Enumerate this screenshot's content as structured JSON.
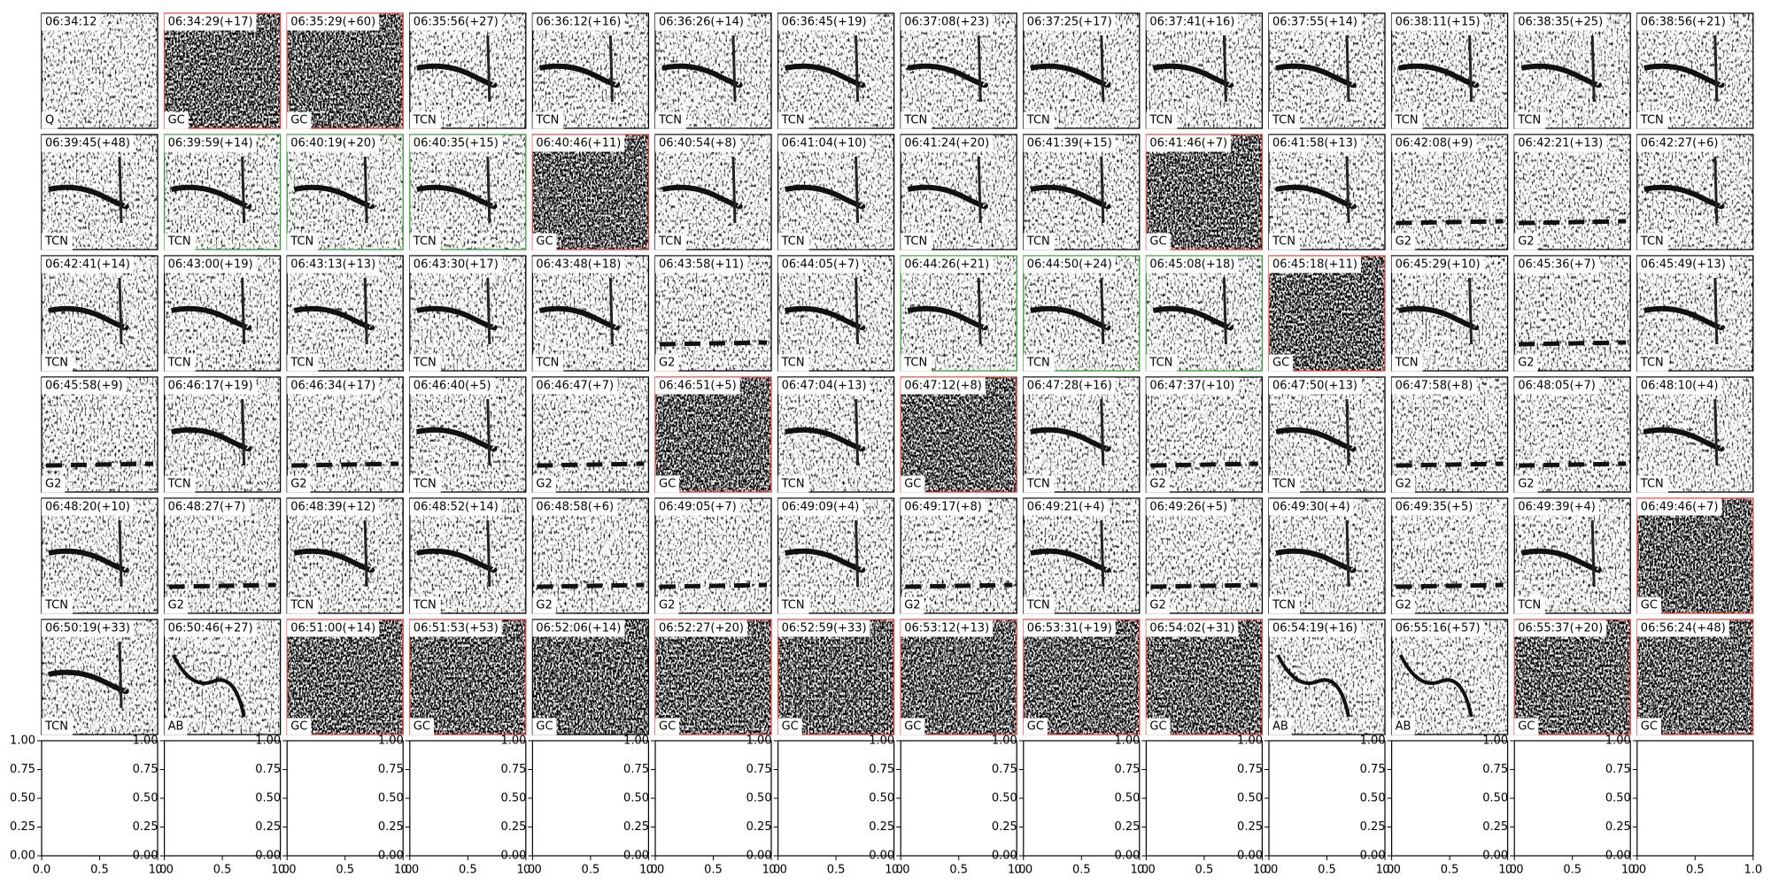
{
  "rows": [
    [
      {
        "time": "06:34:12",
        "label": "Q"
      },
      {
        "time": "06:34:29(+17)",
        "label": "GC",
        "border": "#e5403a"
      },
      {
        "time": "06:35:29(+60)",
        "label": "GC",
        "border": "#e5403a"
      },
      {
        "time": "06:35:56(+27)",
        "label": "TCN"
      },
      {
        "time": "06:36:12(+16)",
        "label": "TCN"
      },
      {
        "time": "06:36:26(+14)",
        "label": "TCN"
      },
      {
        "time": "06:36:45(+19)",
        "label": "TCN"
      },
      {
        "time": "06:37:08(+23)",
        "label": "TCN"
      },
      {
        "time": "06:37:25(+17)",
        "label": "TCN"
      },
      {
        "time": "06:37:41(+16)",
        "label": "TCN"
      },
      {
        "time": "06:37:55(+14)",
        "label": "TCN"
      },
      {
        "time": "06:38:11(+15)",
        "label": "TCN"
      },
      {
        "time": "06:38:35(+25)",
        "label": "TCN"
      },
      {
        "time": "06:38:56(+21)",
        "label": "TCN"
      }
    ],
    [
      {
        "time": "06:39:45(+48)",
        "label": "TCN"
      },
      {
        "time": "06:39:59(+14)",
        "label": "TCN",
        "border": "#3a9a3a"
      },
      {
        "time": "06:40:19(+20)",
        "label": "TCN",
        "border": "#3a9a3a"
      },
      {
        "time": "06:40:35(+15)",
        "label": "TCN",
        "border": "#3a9a3a"
      },
      {
        "time": "06:40:46(+11)",
        "label": "GC",
        "border": "#e5403a"
      },
      {
        "time": "06:40:54(+8)",
        "label": "TCN"
      },
      {
        "time": "06:41:04(+10)",
        "label": "TCN"
      },
      {
        "time": "06:41:24(+20)",
        "label": "TCN"
      },
      {
        "time": "06:41:39(+15)",
        "label": "TCN"
      },
      {
        "time": "06:41:46(+7)",
        "label": "GC",
        "border": "#e5403a"
      },
      {
        "time": "06:41:58(+13)",
        "label": "TCN"
      },
      {
        "time": "06:42:08(+9)",
        "label": "G2"
      },
      {
        "time": "06:42:21(+13)",
        "label": "G2"
      },
      {
        "time": "06:42:27(+6)",
        "label": "TCN"
      }
    ],
    [
      {
        "time": "06:42:41(+14)",
        "label": "TCN"
      },
      {
        "time": "06:43:00(+19)",
        "label": "TCN"
      },
      {
        "time": "06:43:13(+13)",
        "label": "TCN"
      },
      {
        "time": "06:43:30(+17)",
        "label": "TCN"
      },
      {
        "time": "06:43:48(+18)",
        "label": "TCN"
      },
      {
        "time": "06:43:58(+11)",
        "label": "G2"
      },
      {
        "time": "06:44:05(+7)",
        "label": "TCN"
      },
      {
        "time": "06:44:26(+21)",
        "label": "TCN",
        "border": "#3a9a3a"
      },
      {
        "time": "06:44:50(+24)",
        "label": "TCN",
        "border": "#3a9a3a"
      },
      {
        "time": "06:45:08(+18)",
        "label": "TCN",
        "border": "#3a9a3a"
      },
      {
        "time": "06:45:18(+11)",
        "label": "GC",
        "border": "#e5403a"
      },
      {
        "time": "06:45:29(+10)",
        "label": "TCN"
      },
      {
        "time": "06:45:36(+7)",
        "label": "G2"
      },
      {
        "time": "06:45:49(+13)",
        "label": "TCN"
      }
    ],
    [
      {
        "time": "06:45:58(+9)",
        "label": "G2"
      },
      {
        "time": "06:46:17(+19)",
        "label": "TCN"
      },
      {
        "time": "06:46:34(+17)",
        "label": "G2"
      },
      {
        "time": "06:46:40(+5)",
        "label": "TCN"
      },
      {
        "time": "06:46:47(+7)",
        "label": "G2"
      },
      {
        "time": "06:46:51(+5)",
        "label": "GC",
        "border": "#e5403a"
      },
      {
        "time": "06:47:04(+13)",
        "label": "TCN"
      },
      {
        "time": "06:47:12(+8)",
        "label": "GC",
        "border": "#e5403a"
      },
      {
        "time": "06:47:28(+16)",
        "label": "TCN"
      },
      {
        "time": "06:47:37(+10)",
        "label": "G2"
      },
      {
        "time": "06:47:50(+13)",
        "label": "TCN"
      },
      {
        "time": "06:47:58(+8)",
        "label": "G2"
      },
      {
        "time": "06:48:05(+7)",
        "label": "G2"
      },
      {
        "time": "06:48:10(+4)",
        "label": "TCN"
      }
    ],
    [
      {
        "time": "06:48:20(+10)",
        "label": "TCN"
      },
      {
        "time": "06:48:27(+7)",
        "label": "G2"
      },
      {
        "time": "06:48:39(+12)",
        "label": "TCN"
      },
      {
        "time": "06:48:52(+14)",
        "label": "TCN"
      },
      {
        "time": "06:48:58(+6)",
        "label": "G2"
      },
      {
        "time": "06:49:05(+7)",
        "label": "G2"
      },
      {
        "time": "06:49:09(+4)",
        "label": "TCN"
      },
      {
        "time": "06:49:17(+8)",
        "label": "G2"
      },
      {
        "time": "06:49:21(+4)",
        "label": "TCN"
      },
      {
        "time": "06:49:26(+5)",
        "label": "G2"
      },
      {
        "time": "06:49:30(+4)",
        "label": "TCN"
      },
      {
        "time": "06:49:35(+5)",
        "label": "G2"
      },
      {
        "time": "06:49:39(+4)",
        "label": "TCN"
      },
      {
        "time": "06:49:46(+7)",
        "label": "GC",
        "border": "#e5403a"
      }
    ],
    [
      {
        "time": "06:50:19(+33)",
        "label": "TCN"
      },
      {
        "time": "06:50:46(+27)",
        "label": "AB"
      },
      {
        "time": "06:51:00(+14)",
        "label": "GC",
        "border": "#e5403a"
      },
      {
        "time": "06:51:53(+53)",
        "label": "GC",
        "border": "#e5403a"
      },
      {
        "time": "06:52:06(+14)",
        "label": "GC"
      },
      {
        "time": "06:52:27(+20)",
        "label": "GC",
        "border": "#e5403a"
      },
      {
        "time": "06:52:59(+33)",
        "label": "GC",
        "border": "#e5403a"
      },
      {
        "time": "06:53:12(+13)",
        "label": "GC",
        "border": "#e5403a"
      },
      {
        "time": "06:53:31(+19)",
        "label": "GC",
        "border": "#e5403a"
      },
      {
        "time": "06:54:02(+31)",
        "label": "GC",
        "border": "#e5403a"
      },
      {
        "time": "06:54:19(+16)",
        "label": "AB"
      },
      {
        "time": "06:55:16(+57)",
        "label": "AB"
      },
      {
        "time": "06:55:37(+20)",
        "label": "GC",
        "border": "#e5403a"
      },
      {
        "time": "06:56:24(+48)",
        "label": "GC",
        "border": "#e5403a"
      }
    ]
  ],
  "empty_axes": {
    "xlim": [
      0,
      1
    ],
    "ylim": [
      0,
      1
    ],
    "xticks": [
      {
        "value": 0,
        "label": "0.0"
      },
      {
        "value": 0.5,
        "label": "0.5"
      },
      {
        "value": 1,
        "label": "1.0"
      }
    ],
    "yticks": [
      {
        "value": 0,
        "label": "0.00"
      },
      {
        "value": 0.25,
        "label": "0.25"
      },
      {
        "value": 0.5,
        "label": "0.50"
      },
      {
        "value": 0.75,
        "label": "0.75"
      },
      {
        "value": 1,
        "label": "1.00"
      }
    ]
  }
}
